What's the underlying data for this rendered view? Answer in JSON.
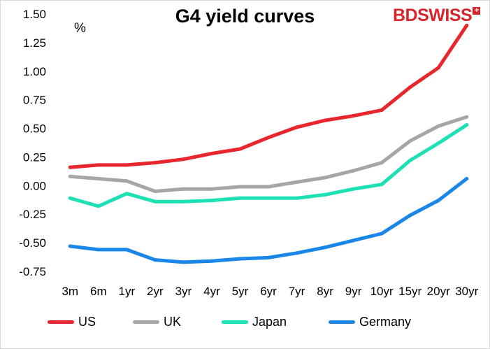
{
  "logo": {
    "text": "BDSWISS",
    "plus": "+"
  },
  "chart_data": {
    "type": "line",
    "title": "G4 yield curves",
    "unit_label": "%",
    "xlabel": "",
    "ylabel": "",
    "categories": [
      "3m",
      "6m",
      "1yr",
      "2yr",
      "3yr",
      "4yr",
      "5yr",
      "6yr",
      "7yr",
      "8yr",
      "9yr",
      "10yr",
      "15yr",
      "20yr",
      "30yr"
    ],
    "ylim": [
      -0.75,
      1.5
    ],
    "yticks": [
      "1.50",
      "1.25",
      "1.00",
      "0.75",
      "0.50",
      "0.25",
      "0.00",
      "-0.25",
      "-0.50",
      "-0.75"
    ],
    "ytick_values": [
      1.5,
      1.25,
      1.0,
      0.75,
      0.5,
      0.25,
      0.0,
      -0.25,
      -0.5,
      -0.75
    ],
    "grid": false,
    "legend_position": "bottom",
    "series": [
      {
        "name": "US",
        "color": "#e8262d",
        "values": [
          0.16,
          0.18,
          0.18,
          0.2,
          0.23,
          0.28,
          0.32,
          0.42,
          0.51,
          0.57,
          0.61,
          0.66,
          0.86,
          1.03,
          1.4
        ]
      },
      {
        "name": "UK",
        "color": "#a6a6a6",
        "values": [
          0.08,
          0.06,
          0.04,
          -0.05,
          -0.03,
          -0.03,
          -0.01,
          -0.01,
          0.03,
          0.07,
          0.13,
          0.2,
          0.39,
          0.52,
          0.6
        ]
      },
      {
        "name": "Japan",
        "color": "#1ee0b5",
        "values": [
          -0.11,
          -0.18,
          -0.07,
          -0.14,
          -0.14,
          -0.13,
          -0.11,
          -0.11,
          -0.11,
          -0.08,
          -0.03,
          0.01,
          0.22,
          0.37,
          0.53
        ]
      },
      {
        "name": "Germany",
        "color": "#1a86e8",
        "values": [
          -0.53,
          -0.56,
          -0.56,
          -0.65,
          -0.67,
          -0.66,
          -0.64,
          -0.63,
          -0.59,
          -0.54,
          -0.48,
          -0.42,
          -0.26,
          -0.13,
          0.06
        ]
      }
    ]
  }
}
